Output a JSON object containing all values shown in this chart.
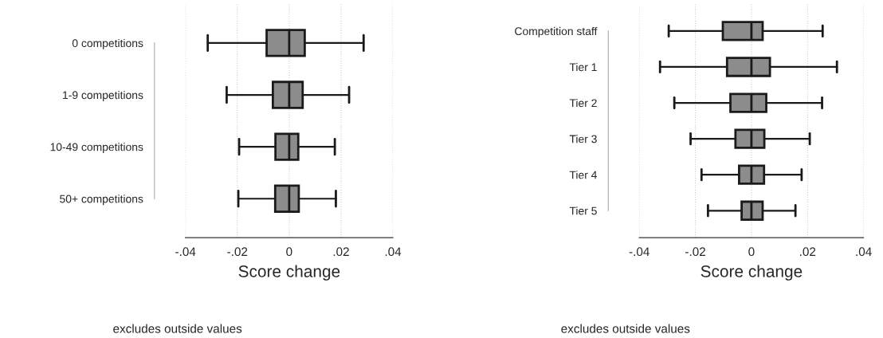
{
  "chart_data": [
    {
      "type": "box",
      "orientation": "horizontal",
      "categories": [
        "0 competitions",
        "1-9 competitions",
        "10-49 competitions",
        "50+ competitions"
      ],
      "color": "#8c8c8c",
      "boxes": [
        {
          "low": -0.0314,
          "q1": -0.0087,
          "median": 0,
          "q3": 0.006,
          "high": 0.0287
        },
        {
          "low": -0.0241,
          "q1": -0.0063,
          "median": 0,
          "q3": 0.0052,
          "high": 0.0231
        },
        {
          "low": -0.0193,
          "q1": -0.0053,
          "median": 0,
          "q3": 0.0035,
          "high": 0.0176
        },
        {
          "low": -0.0196,
          "q1": -0.0054,
          "median": 0,
          "q3": 0.0037,
          "high": 0.018
        }
      ],
      "xlim": [
        -0.04,
        0.04
      ],
      "xticks": [
        {
          "value": -0.04,
          "label": "-.04"
        },
        {
          "value": -0.02,
          "label": "-.02"
        },
        0,
        {
          "value": 0.02,
          "label": ".02"
        },
        {
          "value": 0.04,
          "label": ".04"
        }
      ],
      "xlabel": "Score change",
      "annotations": [
        "excludes outside values"
      ],
      "grid": "x"
    },
    {
      "type": "box",
      "orientation": "horizontal",
      "categories": [
        "Competition staff",
        "Tier 1",
        "Tier 2",
        "Tier 3",
        "Tier 4",
        "Tier 5"
      ],
      "color": "#8c8c8c",
      "boxes": [
        {
          "low": -0.0295,
          "q1": -0.0102,
          "median": 0,
          "q3": 0.004,
          "high": 0.0254
        },
        {
          "low": -0.0326,
          "q1": -0.0087,
          "median": 0,
          "q3": 0.0066,
          "high": 0.0305
        },
        {
          "low": -0.0275,
          "q1": -0.0075,
          "median": 0,
          "q3": 0.0053,
          "high": 0.0252
        },
        {
          "low": -0.0217,
          "q1": -0.0057,
          "median": 0,
          "q3": 0.0046,
          "high": 0.0208
        },
        {
          "low": -0.0178,
          "q1": -0.0044,
          "median": 0,
          "q3": 0.0045,
          "high": 0.0179
        },
        {
          "low": -0.0155,
          "q1": -0.0035,
          "median": 0,
          "q3": 0.004,
          "high": 0.0157
        }
      ],
      "xlim": [
        -0.04,
        0.04
      ],
      "xticks": [
        {
          "value": -0.04,
          "label": "-.04"
        },
        {
          "value": -0.02,
          "label": "-.02"
        },
        0,
        {
          "value": 0.02,
          "label": ".02"
        },
        {
          "value": 0.04,
          "label": ".04"
        }
      ],
      "xlabel": "Score change",
      "annotations": [
        "excludes outside values"
      ],
      "grid": "x"
    }
  ]
}
